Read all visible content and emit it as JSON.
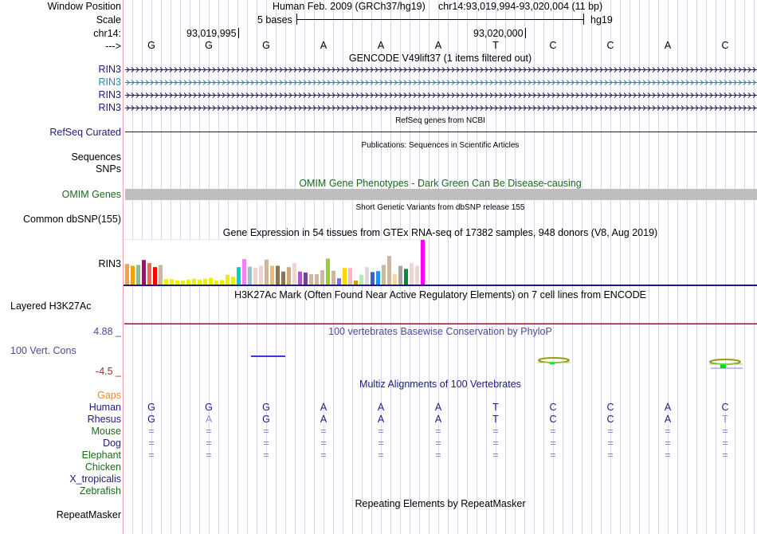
{
  "header": {
    "window_position_label": "Window Position",
    "scale_label": "Scale",
    "chr_label": "chr14:",
    "strand_label": "--->",
    "assembly": "Human Feb. 2009 (GRCh37/hg19)",
    "position": "chr14:93,019,994-93,020,004 (11 bp)",
    "scale_text": "5 bases",
    "scale_db": "hg19",
    "tick_1": "93,019,995",
    "tick_2": "93,020,000"
  },
  "sequence": [
    "G",
    "G",
    "G",
    "A",
    "A",
    "A",
    "T",
    "C",
    "C",
    "A",
    "C"
  ],
  "gencode": {
    "title": "GENCODE V49lift37 (1 items filtered out)",
    "genes": [
      {
        "label": "RIN3",
        "color": "#1a1a80"
      },
      {
        "label": "RIN3",
        "color": "#2a86b0"
      },
      {
        "label": "RIN3",
        "color": "#1a1a80"
      },
      {
        "label": "RIN3",
        "color": "#1a1a80"
      }
    ]
  },
  "refseq": {
    "label": "RefSeq Curated",
    "title": "RefSeq genes from NCBI",
    "color": "#1a1a80"
  },
  "publications": {
    "label_1": "Sequences",
    "title": "Publications: Sequences in Scientific Articles"
  },
  "snps": {
    "label": "SNPs"
  },
  "omim": {
    "label": "OMIM Genes",
    "title": "OMIM Gene Phenotypes - Dark Green Can Be Disease-causing",
    "color": "#1a6a1a",
    "bar_color": "#bebebe"
  },
  "dbsnp": {
    "label": "Common dbSNP(155)",
    "title": "Short Genetic Variants from dbSNP release 155"
  },
  "gtex": {
    "label": "RIN3",
    "title": "Gene Expression in 54 tissues from GTEx RNA-seq of 17382 samples, 948 donors (V8, Aug 2019)"
  },
  "h3k27ac": {
    "label": "Layered H3K27Ac",
    "title": "H3K27Ac Mark (Often Found Near Active Regulatory Elements) on 7 cell lines from ENCODE"
  },
  "conservation": {
    "label": "100 Vert. Cons",
    "max": "4.88 _",
    "min": "-4.5 _",
    "title": "100 vertebrates Basewise Conservation by PhyloP"
  },
  "multiz": {
    "title": "Multiz Alignments of 100 Vertebrates",
    "gaps_label": "Gaps",
    "species": [
      {
        "name": "Human",
        "color": "#1a1a80",
        "bases": [
          "G",
          "G",
          "G",
          "A",
          "A",
          "A",
          "T",
          "C",
          "C",
          "A",
          "C"
        ]
      },
      {
        "name": "Rhesus",
        "color": "#1a1a80",
        "bases": [
          "G",
          "A",
          "G",
          "A",
          "A",
          "A",
          "T",
          "C",
          "C",
          "A",
          "T"
        ]
      },
      {
        "name": "Mouse",
        "color": "#1a6a1a",
        "bases": [
          "=",
          "=",
          "=",
          "=",
          "=",
          "=",
          "=",
          "=",
          "=",
          "=",
          "="
        ]
      },
      {
        "name": "Dog",
        "color": "#1a1a80",
        "bases": [
          "=",
          "=",
          "=",
          "=",
          "=",
          "=",
          "=",
          "=",
          "=",
          "=",
          "="
        ]
      },
      {
        "name": "Elephant",
        "color": "#1a6a1a",
        "bases": [
          "=",
          "=",
          "=",
          "=",
          "=",
          "=",
          "=",
          "=",
          "=",
          "=",
          "="
        ]
      },
      {
        "name": "Chicken",
        "color": "#1a6a1a",
        "bases": []
      },
      {
        "name": "X_tropicalis",
        "color": "#1a1a80",
        "bases": []
      },
      {
        "name": "Zebrafish",
        "color": "#1a6a1a",
        "bases": []
      }
    ]
  },
  "repeatmasker": {
    "label": "RepeatMasker",
    "title": "Repeating Elements by RepeatMasker"
  },
  "chart_data": {
    "type": "bar",
    "title": "Gene Expression in 54 tissues from GTEx RNA-seq of 17382 samples, 948 donors (V8, Aug 2019)",
    "xlabel": "",
    "ylabel": "",
    "ylim": [
      0,
      100
    ],
    "values": [
      46,
      42,
      44,
      55,
      48,
      39,
      44,
      12,
      12,
      9,
      9,
      11,
      13,
      11,
      13,
      15,
      9,
      10,
      22,
      18,
      39,
      57,
      40,
      38,
      42,
      56,
      42,
      42,
      29,
      39,
      48,
      29,
      27,
      23,
      23,
      32,
      58,
      31,
      14,
      37,
      37,
      9,
      22,
      39,
      28,
      30,
      44,
      64,
      24,
      42,
      35,
      48,
      42,
      100
    ],
    "colors": [
      "#f5a14a",
      "#f0a000",
      "#8fbc8f",
      "#8b1c62",
      "#ee6a50",
      "#ff0000",
      "#cdb79e",
      "#eeee00",
      "#eeee00",
      "#eeee00",
      "#eeee00",
      "#eeee00",
      "#eeee00",
      "#eeee00",
      "#eeee00",
      "#eeee00",
      "#eeee00",
      "#eeee00",
      "#eeee00",
      "#eeee00",
      "#00ced1",
      "#ee82ee",
      "#9ac0cd",
      "#eed5d2",
      "#eed5d2",
      "#cdb79e",
      "#eeb87a",
      "#8b7355",
      "#8b7355",
      "#cdaa7d",
      "#eed5d2",
      "#b452cd",
      "#7d3c98",
      "#cdb79e",
      "#cdb79e",
      "#cdb79e",
      "#9acd32",
      "#cdb79e",
      "#7b68ee",
      "#ffd700",
      "#ffb6c1",
      "#cd9b1d",
      "#b4eeb4",
      "#d9d9d9",
      "#3a5fcd",
      "#1e90ff",
      "#cdb79e",
      "#cdb79e",
      "#ffd39b",
      "#a6a6a6",
      "#008b45",
      "#eed5d2",
      "#eed5d2",
      "#ff00ff"
    ]
  }
}
